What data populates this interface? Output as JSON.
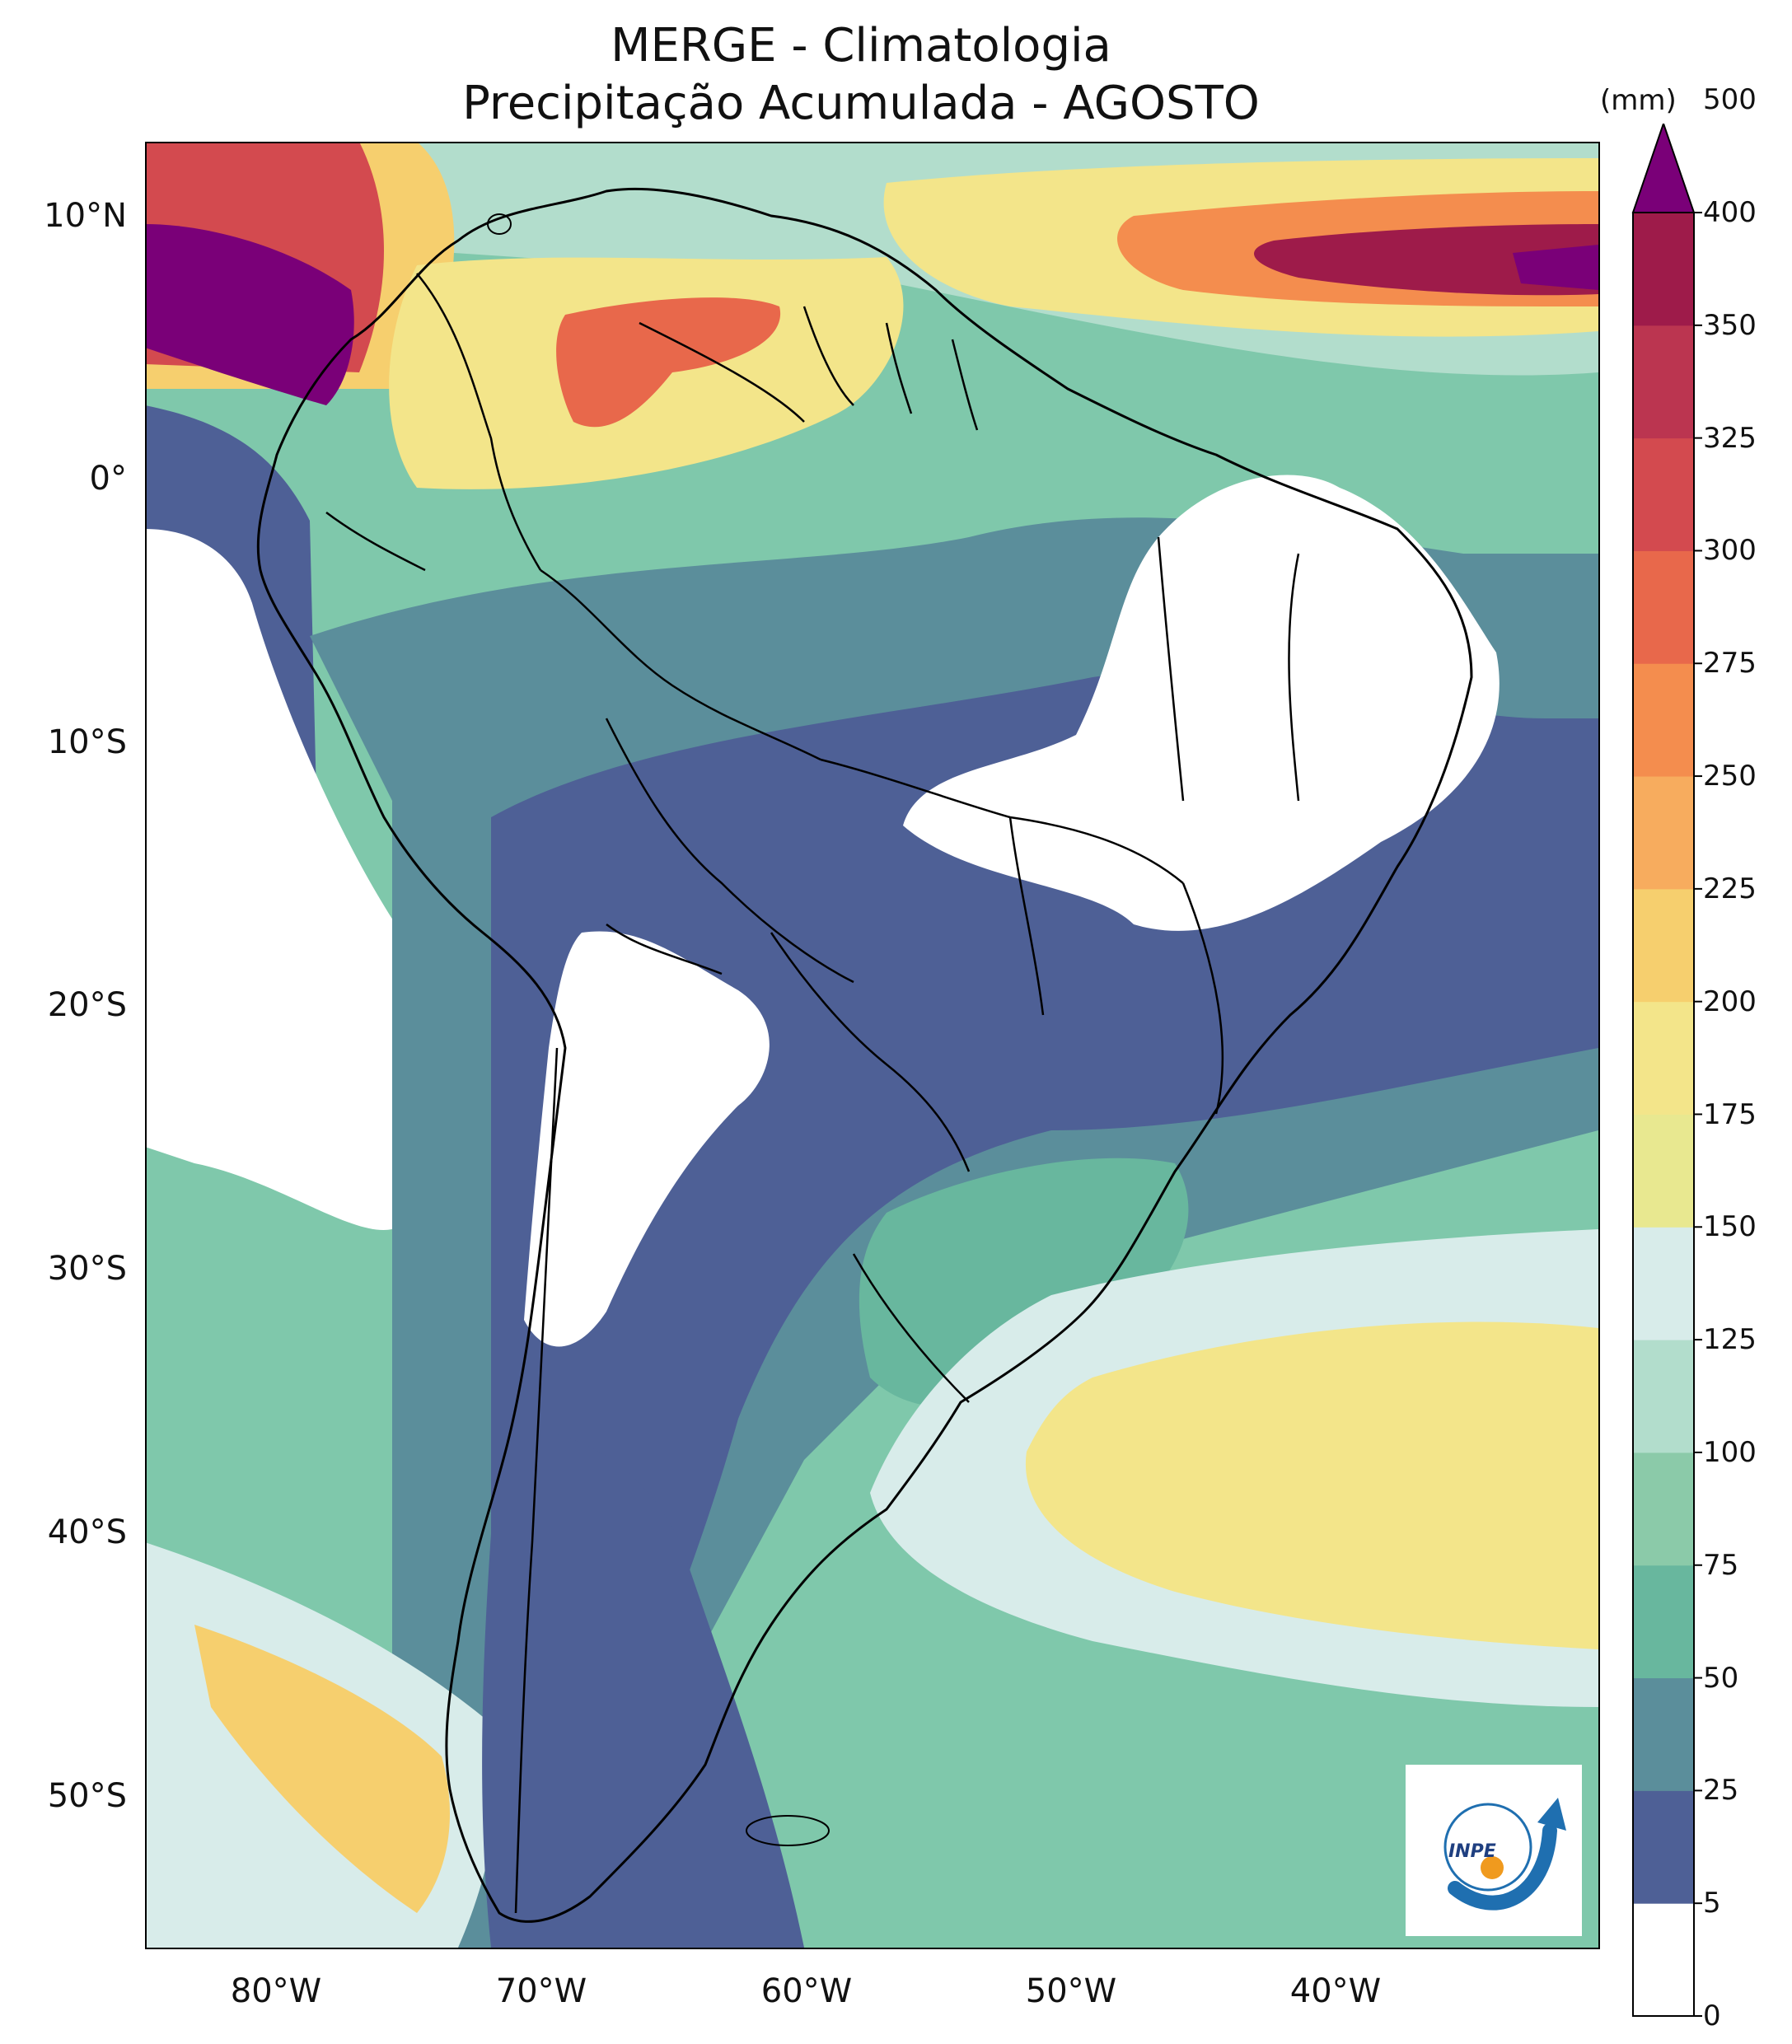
{
  "title": {
    "line1": "MERGE - Climatologia",
    "line2": "Precipitação Acumulada - AGOSTO"
  },
  "axes": {
    "lat_labels": [
      "10°N",
      "0°",
      "10°S",
      "20°S",
      "30°S",
      "40°S",
      "50°S"
    ],
    "lat_values": [
      10,
      0,
      -10,
      -20,
      -30,
      -40,
      -50
    ],
    "lon_labels": [
      "80°W",
      "70°W",
      "60°W",
      "50°W",
      "40°W"
    ],
    "lon_values": [
      -80,
      -70,
      -60,
      -50,
      -40
    ],
    "lon_range": [
      -85,
      -30
    ],
    "lat_range": [
      -56,
      12.5
    ]
  },
  "colorbar": {
    "unit": "(mm)",
    "levels": [
      0,
      5,
      25,
      50,
      75,
      100,
      125,
      150,
      175,
      200,
      225,
      250,
      275,
      300,
      325,
      350,
      400,
      500
    ],
    "tick_labels": [
      "0",
      "5",
      "25",
      "50",
      "75",
      "100",
      "125",
      "150",
      "175",
      "200",
      "225",
      "250",
      "275",
      "300",
      "325",
      "350",
      "400",
      "500"
    ],
    "colors": [
      "#ffffff",
      "#4e6096",
      "#5b8e9b",
      "#68b79e",
      "#8bcaa9",
      "#b2ddcc",
      "#d8ecea",
      "#e8e890",
      "#f3e58a",
      "#f6cf6e",
      "#f7ac5e",
      "#f48d4e",
      "#e8684b",
      "#d34a4f",
      "#bb3550",
      "#9e1b4a"
    ],
    "extend_color": "#7a0078"
  },
  "logo": {
    "text": "INPE"
  }
}
